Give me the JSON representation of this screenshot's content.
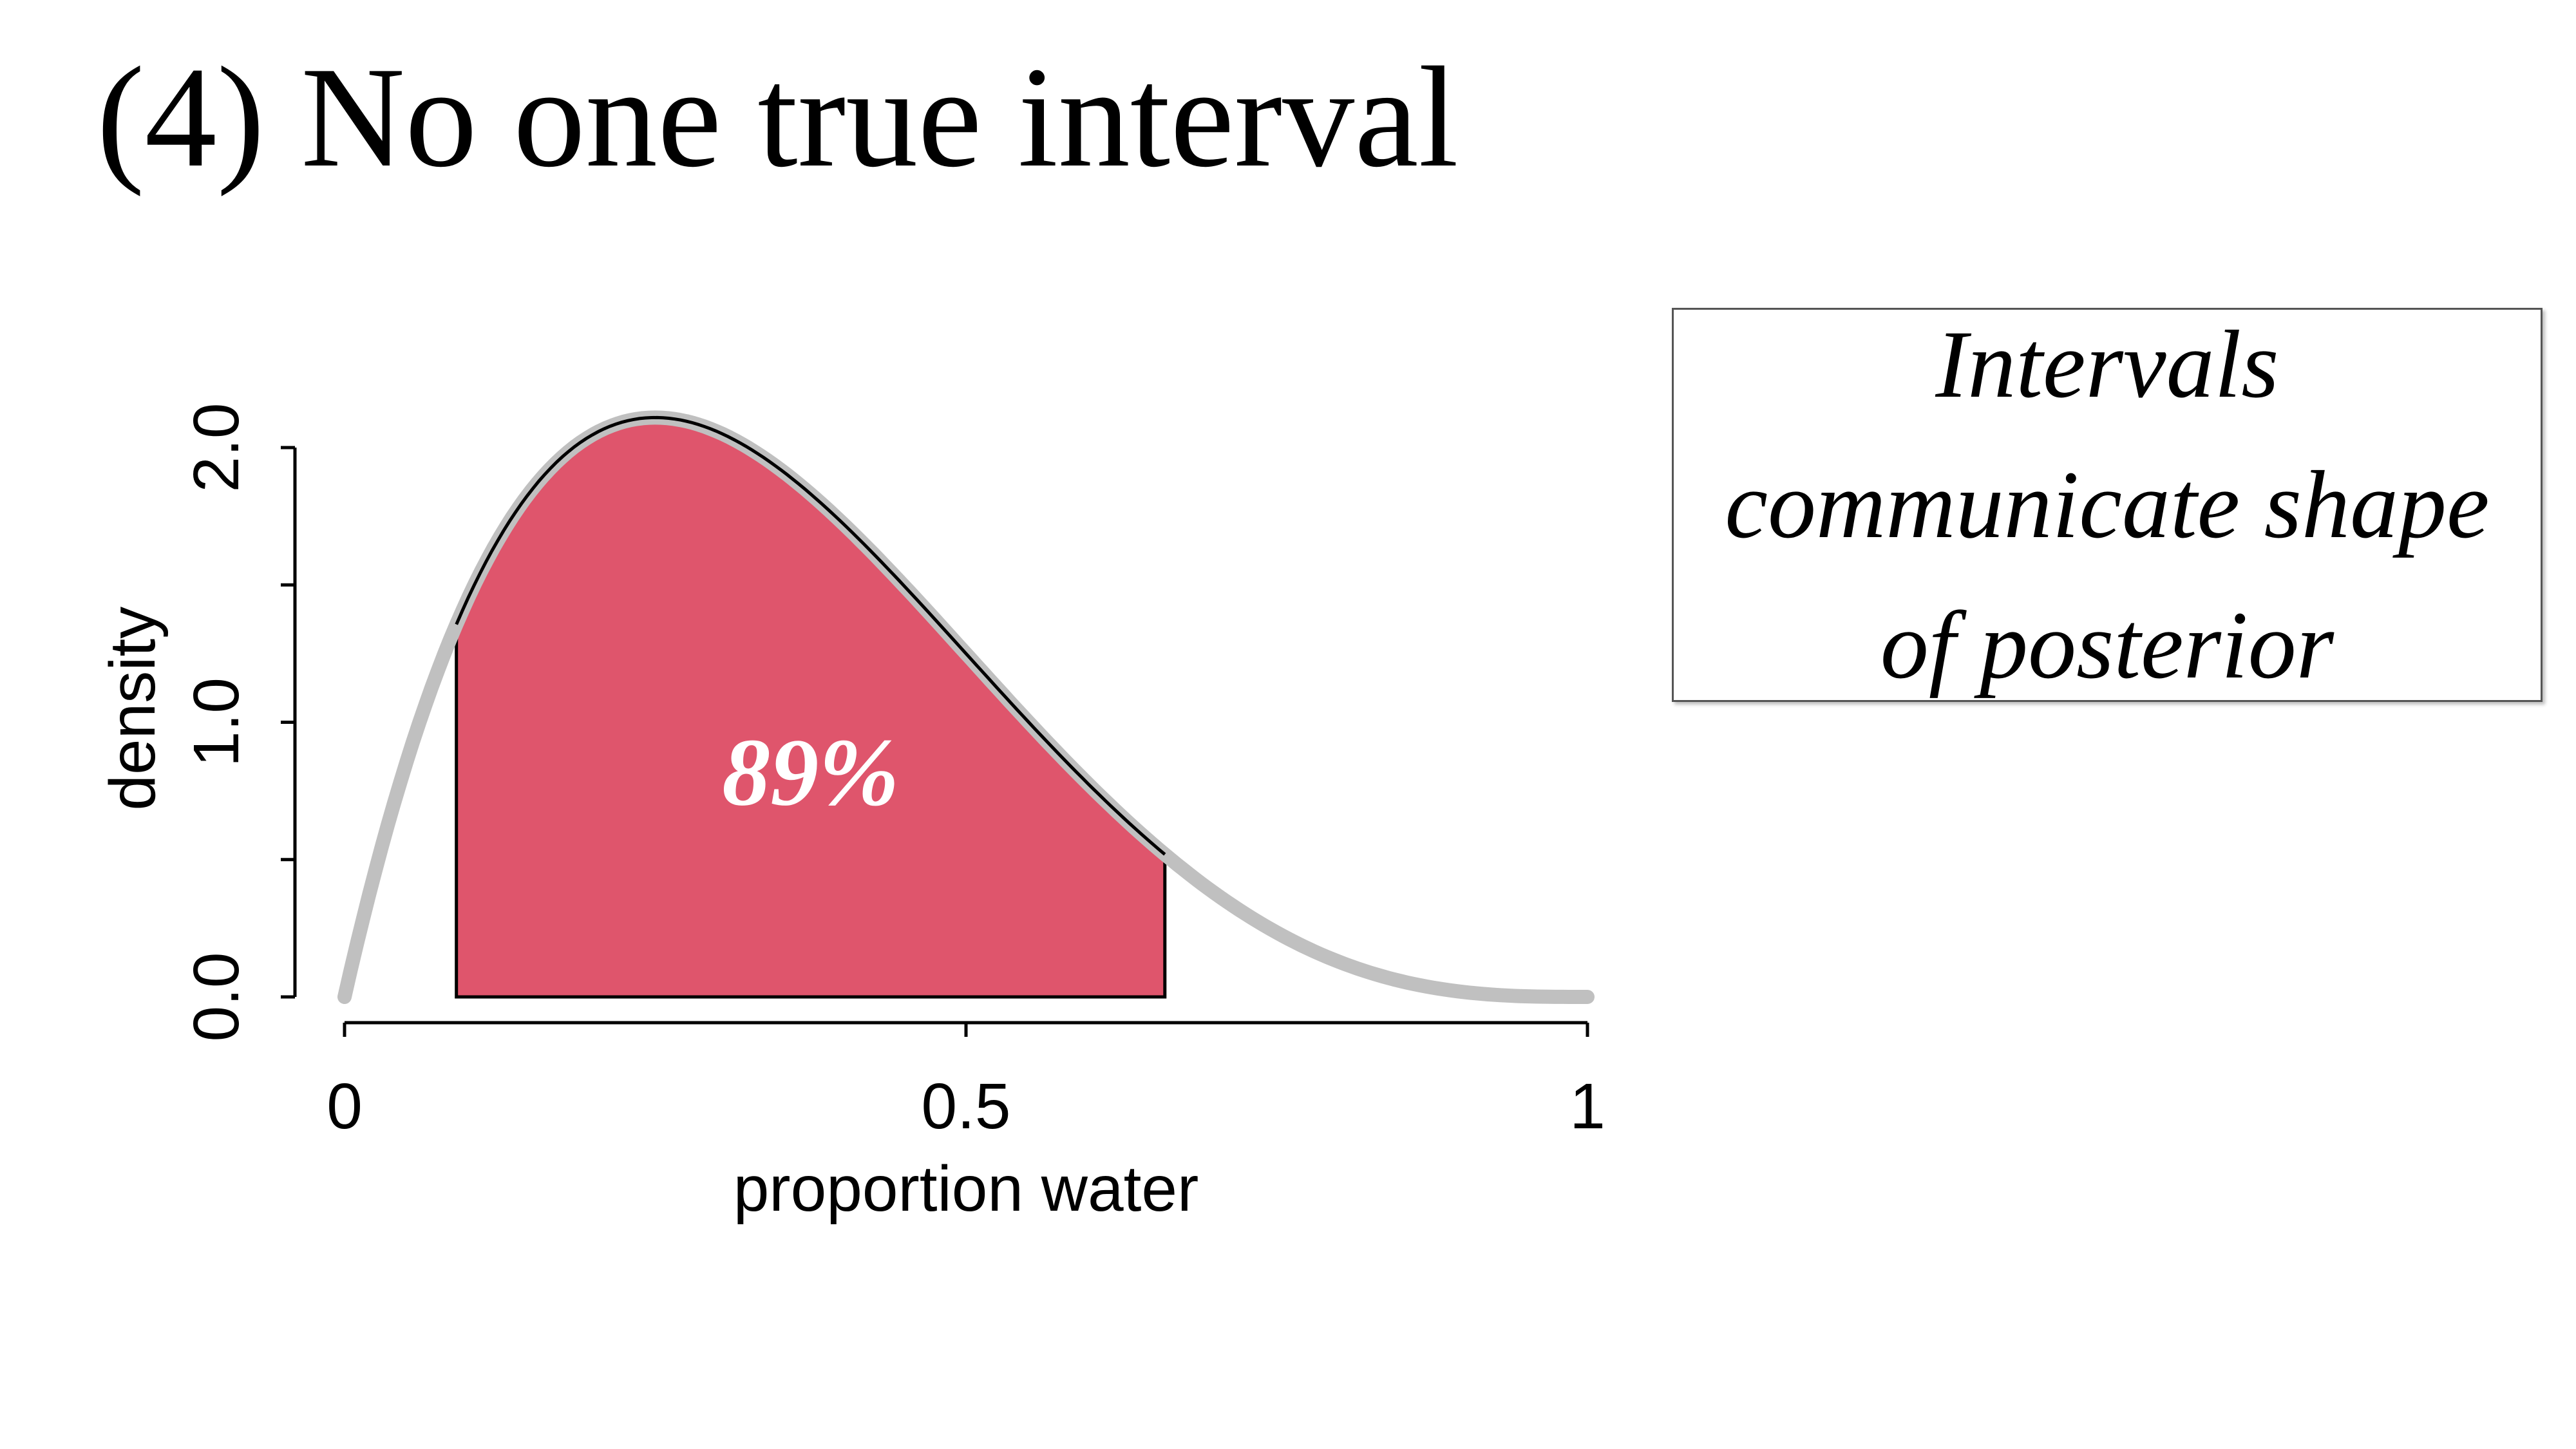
{
  "slide": {
    "title": "(4) No one true interval",
    "callout": "Intervals\ncommunicate shape\nof posterior"
  },
  "colors": {
    "curve": "#c0c0c0",
    "interval_fill": "#df556c",
    "interval_stroke": "#000000",
    "axis": "#000000",
    "interval_label": "#ffffff"
  },
  "chart_data": {
    "type": "area",
    "title": "",
    "xlabel": "proportion water",
    "ylabel": "density",
    "xlim": [
      0,
      1
    ],
    "ylim": [
      0,
      2
    ],
    "x_ticks": [
      0,
      0.5,
      1
    ],
    "x_tick_labels": [
      "0",
      "0.5",
      "1"
    ],
    "y_ticks": [
      0,
      0.5,
      1,
      1.5,
      2
    ],
    "y_tick_labels": [
      "0.0",
      "",
      "1.0",
      "",
      "2.0"
    ],
    "grid": false,
    "series": [
      {
        "x": [
          0,
          0.05,
          0.1,
          0.15,
          0.2,
          0.25,
          0.3,
          0.35,
          0.4,
          0.45,
          0.5,
          0.55,
          0.6,
          0.65,
          0.7,
          0.75,
          0.8,
          0.85,
          0.9,
          0.95,
          1
        ],
        "y": [
          0,
          0.76,
          1.46,
          1.85,
          2.05,
          2.11,
          2.06,
          1.92,
          1.73,
          1.5,
          1.25,
          1.01,
          0.78,
          0.57,
          0.4,
          0.25,
          0.14,
          0.07,
          0.03,
          0.01,
          0
        ]
      }
    ],
    "interval": {
      "lower": 0.09,
      "upper": 0.66,
      "label": "89%"
    }
  }
}
